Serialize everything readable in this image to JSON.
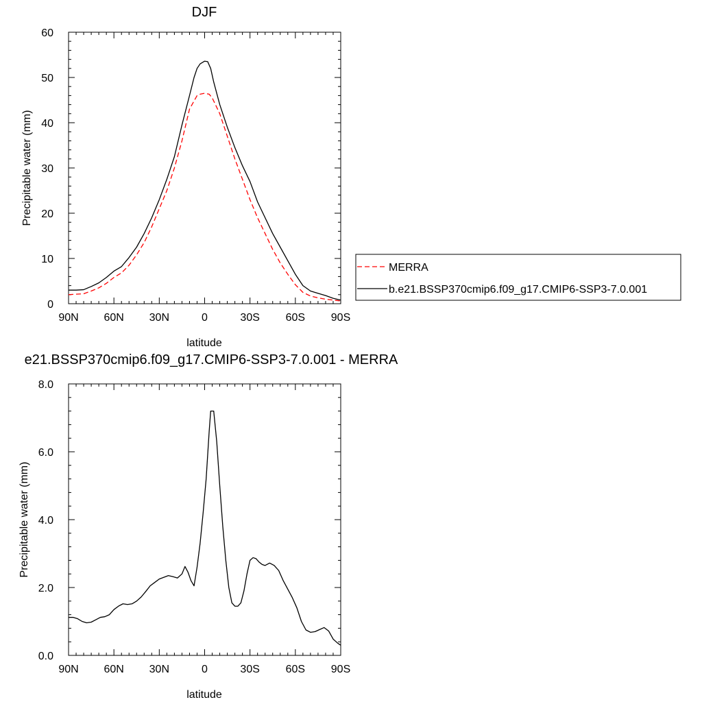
{
  "chart_data": [
    {
      "type": "line",
      "title": "DJF",
      "xlabel": "latitude",
      "ylabel": "Precipitable water (mm)",
      "xlim": [
        90,
        -90
      ],
      "ylim": [
        0,
        60
      ],
      "xticks": [
        90,
        60,
        30,
        0,
        -30,
        -60,
        -90
      ],
      "xtick_labels": [
        "90N",
        "60N",
        "30N",
        "0",
        "30S",
        "60S",
        "90S"
      ],
      "yticks": [
        0,
        10,
        20,
        30,
        40,
        50,
        60
      ],
      "ytick_labels": [
        "0",
        "10",
        "20",
        "30",
        "40",
        "50",
        "60"
      ],
      "grid": false,
      "legend_position": "right",
      "series": [
        {
          "name": "MERRA",
          "color": "#ff0000",
          "dash": "dashed",
          "x": [
            90,
            80,
            75,
            70,
            65,
            60,
            55,
            50,
            45,
            40,
            35,
            30,
            25,
            20,
            15,
            10,
            5,
            3,
            0,
            -3,
            -5,
            -10,
            -15,
            -20,
            -25,
            -30,
            -35,
            -40,
            -45,
            -50,
            -55,
            -60,
            -65,
            -70,
            -75,
            -80,
            -85,
            -90
          ],
          "y": [
            2.0,
            2.2,
            2.8,
            3.5,
            4.5,
            5.8,
            6.8,
            8.5,
            10.8,
            13.5,
            17.0,
            21.0,
            25.0,
            30.0,
            36.0,
            43.0,
            46.0,
            46.3,
            46.5,
            46.3,
            45.5,
            42.0,
            37.0,
            32.0,
            27.5,
            23.0,
            19.0,
            15.5,
            12.0,
            9.0,
            6.5,
            4.2,
            2.5,
            1.7,
            1.3,
            1.0,
            0.8,
            0.6
          ]
        },
        {
          "name": "b.e21.BSSP370cmip6.f09_g17.CMIP6-SSP3-7.0.001",
          "color": "#000000",
          "dash": "solid",
          "x": [
            90,
            85,
            80,
            75,
            70,
            65,
            60,
            55,
            50,
            45,
            40,
            35,
            30,
            25,
            20,
            15,
            10,
            7,
            5,
            3,
            0,
            -2,
            -4,
            -6,
            -10,
            -15,
            -20,
            -25,
            -30,
            -35,
            -40,
            -45,
            -50,
            -55,
            -60,
            -65,
            -70,
            -75,
            -80,
            -85,
            -90
          ],
          "y": [
            3.0,
            3.0,
            3.1,
            3.8,
            4.6,
            5.8,
            7.2,
            8.2,
            10.2,
            12.5,
            15.5,
            19.0,
            23.0,
            27.5,
            32.5,
            39.5,
            46.0,
            50.0,
            52.0,
            53.0,
            53.6,
            53.5,
            52.0,
            49.0,
            44.0,
            39.0,
            34.5,
            30.5,
            27.0,
            22.5,
            19.0,
            15.5,
            12.5,
            9.5,
            6.5,
            4.0,
            2.8,
            2.3,
            1.8,
            1.2,
            0.8
          ]
        }
      ]
    },
    {
      "type": "line",
      "title": "e21.BSSP370cmip6.f09_g17.CMIP6-SSP3-7.0.001 - MERRA",
      "xlabel": "latitude",
      "ylabel": "Precipitable water (mm)",
      "xlim": [
        90,
        -90
      ],
      "ylim": [
        0,
        8
      ],
      "xticks": [
        90,
        60,
        30,
        0,
        -30,
        -60,
        -90
      ],
      "xtick_labels": [
        "90N",
        "60N",
        "30N",
        "0",
        "30S",
        "60S",
        "90S"
      ],
      "yticks": [
        0,
        2,
        4,
        6,
        8
      ],
      "ytick_labels": [
        "0.0",
        "2.0",
        "4.0",
        "6.0",
        "8.0"
      ],
      "grid": false,
      "series": [
        {
          "color": "#000000",
          "dash": "solid",
          "x": [
            90,
            87,
            84,
            81,
            78,
            75,
            72,
            69,
            66,
            63,
            60,
            57,
            54,
            51,
            48,
            45,
            42,
            39,
            36,
            33,
            30,
            27,
            24,
            21,
            18,
            15,
            13,
            11,
            9,
            7,
            5,
            3,
            1,
            0,
            -1,
            -2,
            -3,
            -4,
            -6,
            -8,
            -10,
            -12,
            -14,
            -16,
            -18,
            -20,
            -22,
            -24,
            -26,
            -28,
            -30,
            -32,
            -34,
            -36,
            -38,
            -40,
            -43,
            -46,
            -49,
            -52,
            -55,
            -58,
            -61,
            -64,
            -67,
            -70,
            -73,
            -76,
            -79,
            -82,
            -85,
            -88,
            -90
          ],
          "y": [
            1.12,
            1.12,
            1.08,
            1.0,
            0.96,
            0.98,
            1.05,
            1.12,
            1.14,
            1.2,
            1.35,
            1.45,
            1.52,
            1.5,
            1.52,
            1.6,
            1.72,
            1.88,
            2.05,
            2.15,
            2.25,
            2.3,
            2.35,
            2.32,
            2.28,
            2.4,
            2.62,
            2.45,
            2.2,
            2.05,
            2.6,
            3.3,
            4.2,
            4.7,
            5.2,
            5.9,
            6.6,
            7.2,
            7.2,
            6.3,
            5.0,
            3.8,
            2.8,
            2.0,
            1.55,
            1.45,
            1.45,
            1.55,
            1.9,
            2.4,
            2.8,
            2.88,
            2.85,
            2.75,
            2.68,
            2.65,
            2.72,
            2.65,
            2.5,
            2.2,
            1.95,
            1.7,
            1.4,
            1.0,
            0.75,
            0.68,
            0.7,
            0.76,
            0.82,
            0.72,
            0.48,
            0.36,
            0.3
          ]
        }
      ]
    }
  ]
}
